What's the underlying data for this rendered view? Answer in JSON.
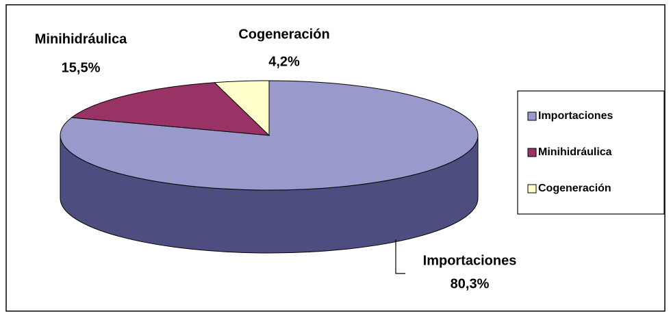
{
  "chart_data": {
    "type": "pie",
    "categories": [
      "Importaciones",
      "Minihidráulica",
      "Cogeneración"
    ],
    "values": [
      80.3,
      15.5,
      4.2
    ],
    "value_labels": [
      "80,3%",
      "15,5%",
      "4,2%"
    ],
    "colors": [
      "#9999cc",
      "#993366",
      "#ffffcc"
    ],
    "legend": "right"
  }
}
